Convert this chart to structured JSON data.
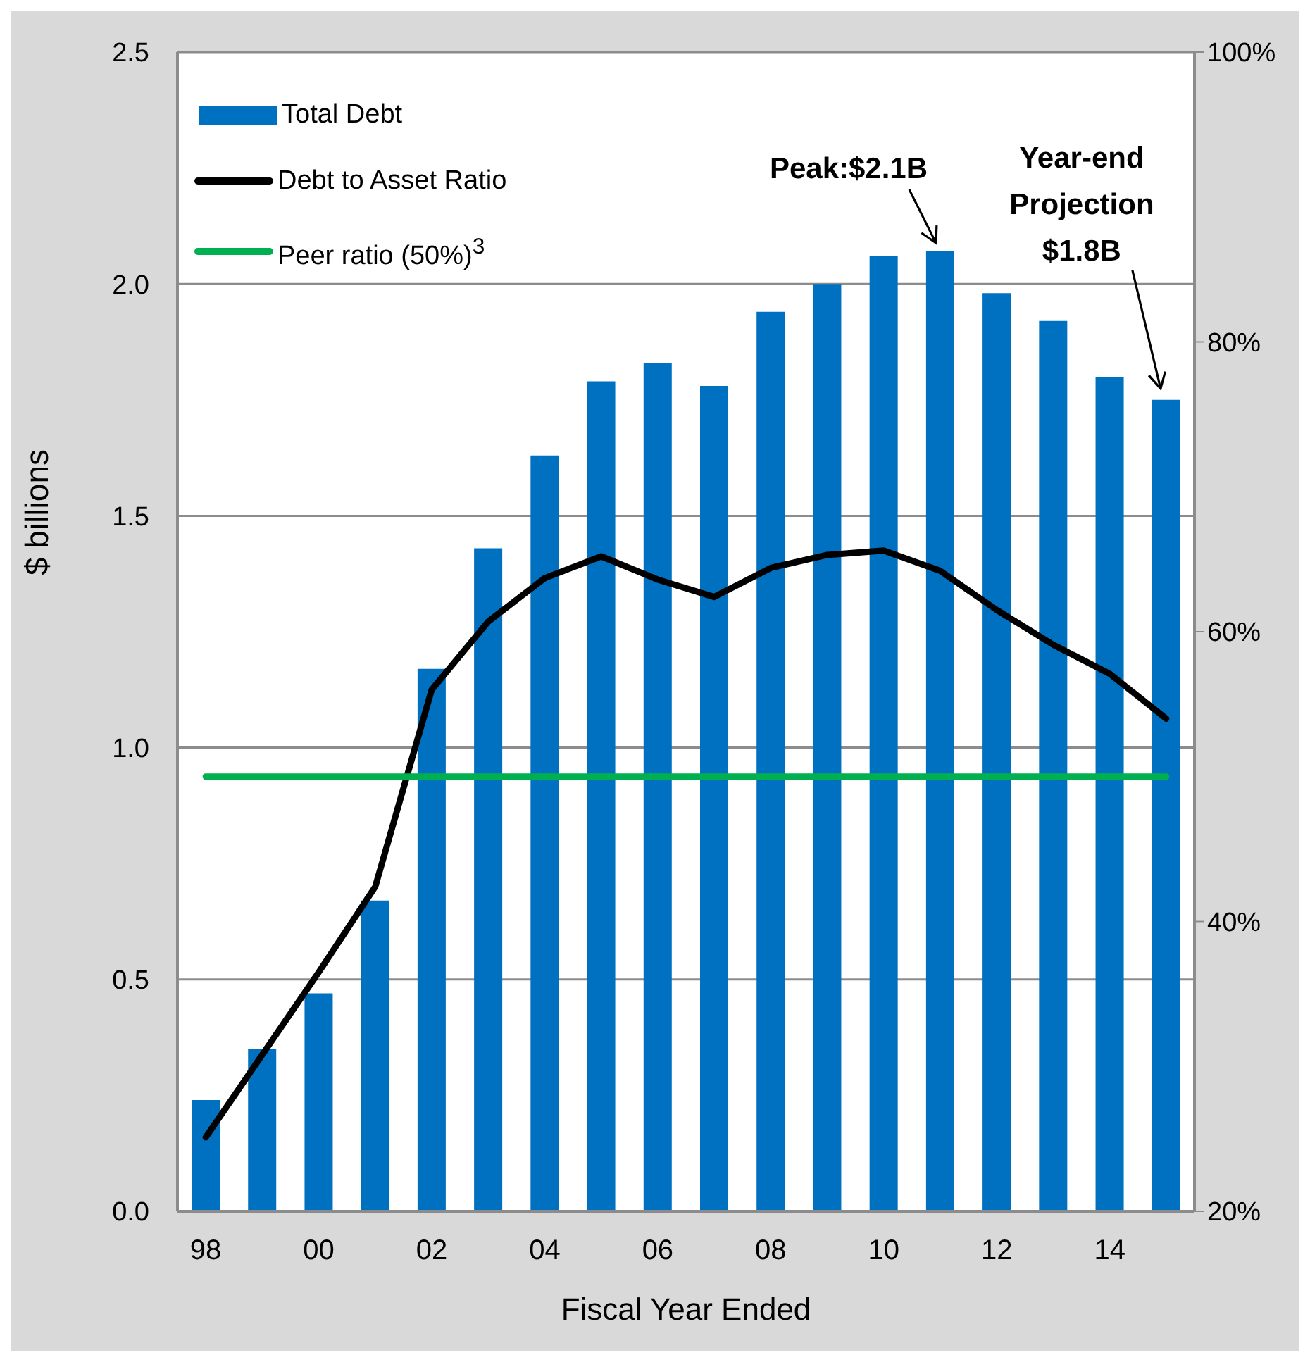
{
  "chart_data": {
    "type": "bar",
    "categories": [
      "98",
      null,
      "00",
      null,
      "02",
      null,
      "04",
      null,
      "06",
      null,
      "08",
      null,
      "10",
      null,
      "12",
      null,
      "14",
      null
    ],
    "series": [
      {
        "name": "Total Debt",
        "color": "#0070c0",
        "values": [
          0.24,
          0.35,
          0.47,
          0.67,
          1.17,
          1.43,
          1.63,
          1.79,
          1.83,
          1.78,
          1.94,
          2.0,
          2.06,
          2.07,
          1.98,
          1.92,
          1.8,
          1.75
        ]
      },
      {
        "name": "Debt to Asset Ratio",
        "type": "line",
        "axis": "y2",
        "color": "#000000",
        "values": [
          25.1,
          30.8,
          36.5,
          42.4,
          56.0,
          60.7,
          63.7,
          65.2,
          63.6,
          62.4,
          64.4,
          65.3,
          65.6,
          64.2,
          61.5,
          59.1,
          57.1,
          54.0
        ]
      },
      {
        "name": "Peer ratio (50%)$^{3}$",
        "type": "line",
        "axis": "y2",
        "color": "#00b050",
        "values": [
          50,
          50,
          50,
          50,
          50,
          50,
          50,
          50,
          50,
          50,
          50,
          50,
          50,
          50,
          50,
          50,
          50,
          50
        ]
      }
    ],
    "xlabel": "Fiscal Year Ended",
    "ylabel": "$ billions",
    "ylim": [
      0,
      2.5
    ],
    "yticks": [
      {
        "value": 0,
        "label": "0.0"
      },
      0.5,
      {
        "value": 1,
        "label": "1.0"
      },
      1.5,
      {
        "value": 2,
        "label": "2.0"
      },
      2.5
    ],
    "y2lim": [
      20,
      100
    ],
    "y2ticks": [
      {
        "value": 20,
        "label": "20%"
      },
      {
        "value": 40,
        "label": "40%"
      },
      {
        "value": 60,
        "label": "60%"
      },
      {
        "value": 80,
        "label": "80%"
      },
      {
        "value": 100,
        "label": "100%"
      }
    ],
    "grid": "y",
    "legend": "top left",
    "marker": "none",
    "annotations": [
      "Peak:$2.1B",
      "Year-end Projection $1.8B"
    ]
  }
}
